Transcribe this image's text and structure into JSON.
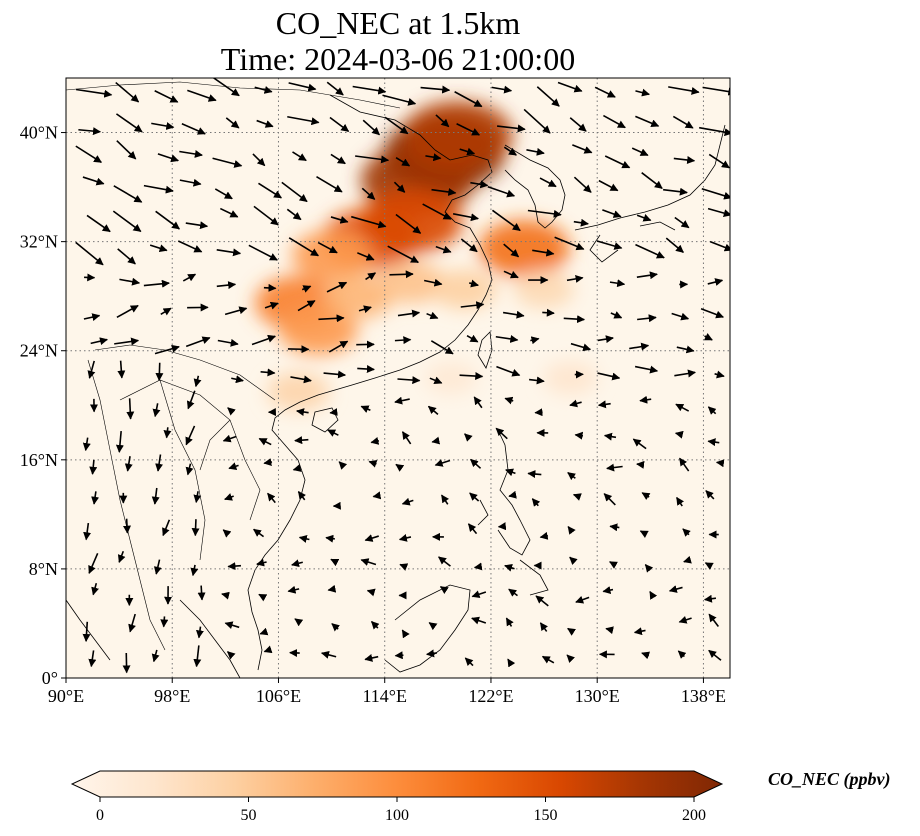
{
  "title": "CO_NEC at 1.5km",
  "subtitle": "Time: 2024-03-06 21:00:00",
  "map": {
    "lon_range": [
      90,
      140
    ],
    "lat_range": [
      0,
      44
    ],
    "lon_ticks": [
      90,
      98,
      106,
      114,
      122,
      130,
      138
    ],
    "lon_labels": [
      "90°E",
      "98°E",
      "106°E",
      "114°E",
      "122°E",
      "130°E",
      "138°E"
    ],
    "lat_ticks": [
      0,
      8,
      16,
      24,
      32,
      40
    ],
    "lat_labels": [
      "0°",
      "8°N",
      "16°N",
      "24°N",
      "32°N",
      "40°N"
    ],
    "gridlines": "dotted",
    "background_color": "#fef6ea",
    "coastline_color": "#000000",
    "vector_field": "wind arrows"
  },
  "colorbar": {
    "label": "CO_NEC (ppbv)",
    "min": 0,
    "max": 200,
    "extend": "both",
    "ticks": [
      0,
      50,
      100,
      150,
      200
    ],
    "tick_labels": [
      "0",
      "50",
      "100",
      "150",
      "200"
    ],
    "colormap": [
      "#fff5eb",
      "#fee6ce",
      "#fdd0a2",
      "#fdae6b",
      "#fd8d3c",
      "#f16913",
      "#d94801",
      "#a63603",
      "#7f2704"
    ],
    "colormap_name": "Oranges-Reds"
  },
  "concentration_regions": [
    {
      "lon": 118.5,
      "lat": 38.5,
      "level": 200
    },
    {
      "lon": 116.5,
      "lat": 36.5,
      "level": 180
    },
    {
      "lon": 119.5,
      "lat": 39.8,
      "level": 170
    },
    {
      "lon": 113.0,
      "lat": 32.2,
      "level": 140
    },
    {
      "lon": 116.0,
      "lat": 33.5,
      "level": 150
    },
    {
      "lon": 124.5,
      "lat": 31.5,
      "level": 120
    },
    {
      "lon": 110.0,
      "lat": 31.0,
      "level": 90
    },
    {
      "lon": 107.5,
      "lat": 27.5,
      "level": 110
    },
    {
      "lon": 109.0,
      "lat": 25.5,
      "level": 90
    },
    {
      "lon": 112.0,
      "lat": 28.0,
      "level": 70
    },
    {
      "lon": 116.0,
      "lat": 29.0,
      "level": 60
    },
    {
      "lon": 120.0,
      "lat": 28.5,
      "level": 50
    },
    {
      "lon": 126.0,
      "lat": 28.5,
      "level": 40
    },
    {
      "lon": 128.0,
      "lat": 22.0,
      "level": 25
    },
    {
      "lon": 119.0,
      "lat": 22.0,
      "level": 20
    },
    {
      "lon": 107.5,
      "lat": 21.0,
      "level": 45
    }
  ]
}
